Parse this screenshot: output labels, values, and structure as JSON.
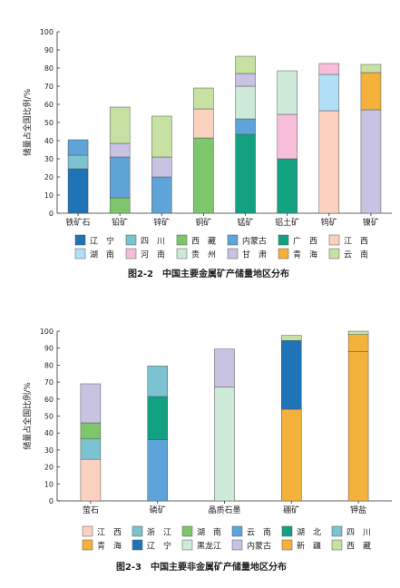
{
  "colors": {
    "liaoning": "#1f73b7",
    "sichuan": "#7bc3d0",
    "xizang": "#7dc66b",
    "neimenggu": "#5fa4d9",
    "guangxi": "#12a283",
    "jiangxi": "#fbd2bf",
    "hunan": "#b1dff5",
    "henan": "#f7bed9",
    "guizhou": "#cde9d8",
    "gansu": "#c8c2e3",
    "qinghai": "#f4b23c",
    "yunnan": "#c7e1a3",
    "zhejiang": "#7bc3d0",
    "hubei": "#12a283",
    "heilongjiang": "#cde9d8",
    "xinjiang": "#f4b23c"
  },
  "chart_data": [
    {
      "type": "bar",
      "stacked": true,
      "title": "图2-2　中国主要金属矿产储量地区分布",
      "ylabel": "储量占全国比例/%",
      "ylim": [
        0,
        100
      ],
      "yticks": [
        "0",
        "10",
        "20",
        "30",
        "40",
        "50",
        "60",
        "70",
        "80",
        "90",
        "100"
      ],
      "categories": [
        "铁矿石",
        "铅矿",
        "锌矿",
        "铜矿",
        "锰矿",
        "铝土矿",
        "钨矿",
        "镍矿"
      ],
      "legend": [
        {
          "key": "liaoning",
          "name": "辽　宁"
        },
        {
          "key": "sichuan",
          "name": "四　川"
        },
        {
          "key": "xizang",
          "name": "西　藏"
        },
        {
          "key": "neimenggu",
          "name": "内蒙古"
        },
        {
          "key": "guangxi",
          "name": "广　西"
        },
        {
          "key": "jiangxi",
          "name": "江　西"
        },
        {
          "key": "hunan",
          "name": "湖　南"
        },
        {
          "key": "henan",
          "name": "河　南"
        },
        {
          "key": "guizhou",
          "name": "贵　州"
        },
        {
          "key": "gansu",
          "name": "甘　肃"
        },
        {
          "key": "qinghai",
          "name": "青　海"
        },
        {
          "key": "yunnan",
          "name": "云　南"
        }
      ],
      "stacks": [
        [
          {
            "key": "liaoning",
            "value": 24.5
          },
          {
            "key": "sichuan",
            "value": 7.5
          },
          {
            "key": "neimenggu",
            "value": 8.5
          }
        ],
        [
          {
            "key": "xizang",
            "value": 8.5
          },
          {
            "key": "neimenggu",
            "value": 22.5
          },
          {
            "key": "gansu",
            "value": 7.5
          },
          {
            "key": "yunnan",
            "value": 20
          }
        ],
        [
          {
            "key": "neimenggu",
            "value": 20
          },
          {
            "key": "gansu",
            "value": 11
          },
          {
            "key": "yunnan",
            "value": 22.5
          }
        ],
        [
          {
            "key": "xizang",
            "value": 41.5
          },
          {
            "key": "jiangxi",
            "value": 16
          },
          {
            "key": "yunnan",
            "value": 11.5
          }
        ],
        [
          {
            "key": "guangxi",
            "value": 43.5
          },
          {
            "key": "neimenggu",
            "value": 8.5
          },
          {
            "key": "guizhou",
            "value": 18
          },
          {
            "key": "gansu",
            "value": 7
          },
          {
            "key": "yunnan",
            "value": 9.5
          }
        ],
        [
          {
            "key": "guangxi",
            "value": 30
          },
          {
            "key": "henan",
            "value": 24.5
          },
          {
            "key": "guizhou",
            "value": 24
          }
        ],
        [
          {
            "key": "jiangxi",
            "value": 56.5
          },
          {
            "key": "hunan",
            "value": 20
          },
          {
            "key": "henan",
            "value": 6
          }
        ],
        [
          {
            "key": "gansu",
            "value": 57
          },
          {
            "key": "qinghai",
            "value": 20.5
          },
          {
            "key": "yunnan",
            "value": 4.5
          }
        ]
      ]
    },
    {
      "type": "bar",
      "stacked": true,
      "title": "图2-3　中国主要非金属矿产储量地区分布",
      "ylabel": "储量占全国比例/%",
      "ylim": [
        0,
        100
      ],
      "yticks": [
        "0",
        "10",
        "20",
        "30",
        "40",
        "50",
        "60",
        "70",
        "80",
        "90",
        "100"
      ],
      "categories": [
        "萤石",
        "磷矿",
        "晶质石墨",
        "硼矿",
        "钾盐"
      ],
      "legend": [
        {
          "key": "jiangxi",
          "name": "江　西"
        },
        {
          "key": "zhejiang",
          "name": "浙　江"
        },
        {
          "key": "xizang",
          "name": "湖　南"
        },
        {
          "key": "neimenggu",
          "name": "云　南"
        },
        {
          "key": "hubei",
          "name": "湖　北"
        },
        {
          "key": "sichuan",
          "name": "四　川"
        },
        {
          "key": "qinghai",
          "name": "青　海"
        },
        {
          "key": "liaoning",
          "name": "辽　宁"
        },
        {
          "key": "heilongjiang",
          "name": "黑龙江"
        },
        {
          "key": "gansu",
          "name": "内蒙古"
        },
        {
          "key": "xinjiang",
          "name": "新　疆"
        },
        {
          "key": "yunnan",
          "name": "西　藏"
        }
      ],
      "stacks": [
        [
          {
            "key": "jiangxi",
            "value": 24.5
          },
          {
            "key": "zhejiang",
            "value": 12
          },
          {
            "key": "xizang",
            "value": 9.5
          },
          {
            "key": "gansu",
            "value": 23
          }
        ],
        [
          {
            "key": "neimenggu",
            "value": 36
          },
          {
            "key": "hubei",
            "value": 25.5
          },
          {
            "key": "sichuan",
            "value": 18
          }
        ],
        [
          {
            "key": "heilongjiang",
            "value": 67
          },
          {
            "key": "gansu",
            "value": 22.5
          }
        ],
        [
          {
            "key": "qinghai",
            "value": 54
          },
          {
            "key": "liaoning",
            "value": 40.5
          },
          {
            "key": "yunnan",
            "value": 3
          }
        ],
        [
          {
            "key": "qinghai",
            "value": 88
          },
          {
            "key": "xinjiang",
            "value": 10
          },
          {
            "key": "yunnan",
            "value": 2
          }
        ]
      ]
    }
  ]
}
